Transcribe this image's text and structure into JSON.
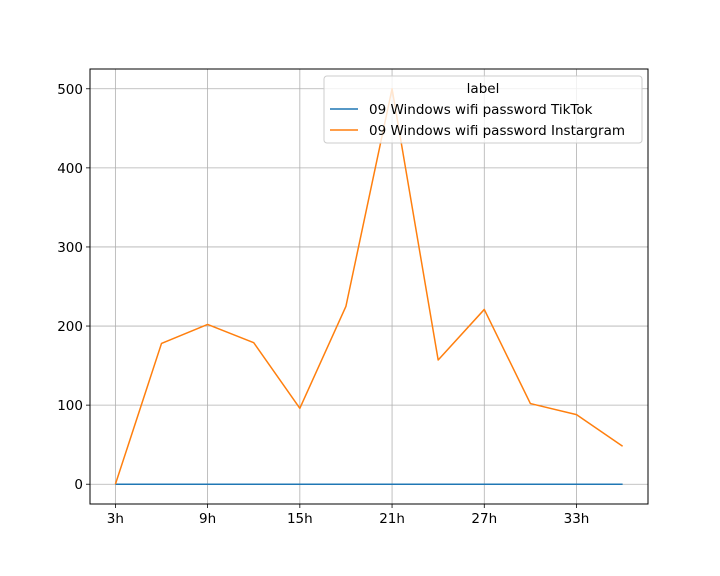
{
  "chart_data": {
    "type": "line",
    "legend_title": "label",
    "legend_position": "upper right",
    "grid": true,
    "x": [
      "3h",
      "6h",
      "9h",
      "12h",
      "15h",
      "18h",
      "21h",
      "24h",
      "27h",
      "30h",
      "33h",
      "36h"
    ],
    "xticks": [
      "3h",
      "9h",
      "15h",
      "21h",
      "27h",
      "33h"
    ],
    "yticks": [
      0,
      100,
      200,
      300,
      400,
      500
    ],
    "ylim": [
      -25,
      525
    ],
    "series": [
      {
        "name": "09 Windows wifi password TikTok",
        "color": "#1f77b4",
        "values": [
          0,
          0,
          0,
          0,
          0,
          0,
          0,
          0,
          0,
          0,
          0,
          0
        ]
      },
      {
        "name": "09 Windows wifi password Instargram",
        "color": "#ff7f0e",
        "values": [
          0,
          178,
          202,
          179,
          96,
          225,
          500,
          157,
          221,
          102,
          88,
          48
        ]
      }
    ]
  }
}
